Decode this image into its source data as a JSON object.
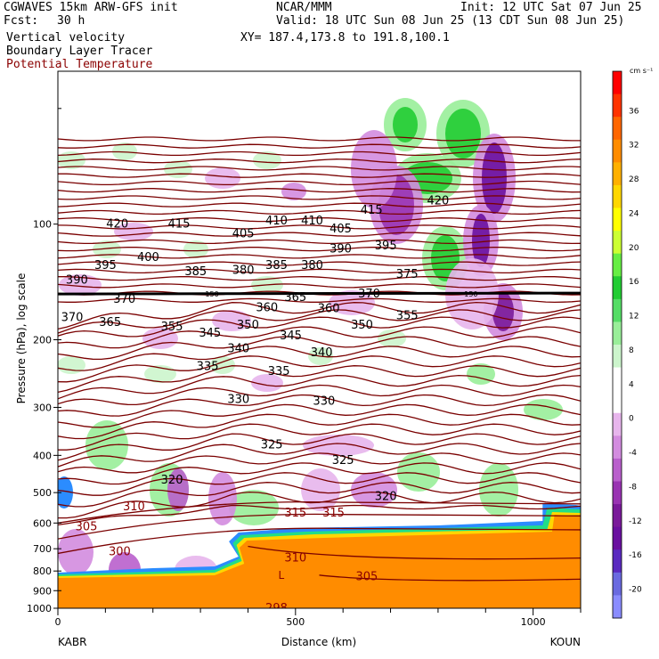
{
  "header": {
    "model": "CGWAVES 15km ARW-GFS init",
    "fcst_label": "Fcst:",
    "fcst_value": "30 h",
    "center": "NCAR/MMM",
    "init": "Init: 12 UTC Sat 07 Jun 25",
    "valid": "Valid: 18 UTC Sun 08 Jun 25 (13 CDT Sun 08 Jun 25)",
    "xy": "XY= 187.4,173.8 to 191.8,100.1",
    "fields": [
      "Vertical velocity",
      "Boundary Layer Tracer",
      "Potential Temperature"
    ]
  },
  "colors": {
    "theta_contour": "#7a0000",
    "theta_label": "#8b0000",
    "pbl_fill": "#ff8c00",
    "tropopause": "#000000"
  },
  "chart_data": {
    "type": "contour-cross-section",
    "xlabel": "Distance (km)",
    "ylabel": "Pressure (hPa), log scale",
    "xlim": [
      0,
      1100
    ],
    "x_ticks": [
      0,
      500,
      1000
    ],
    "ylim": [
      1000,
      40
    ],
    "y_scale": "log",
    "y_ticks": [
      100,
      200,
      300,
      400,
      500,
      600,
      700,
      800,
      900,
      1000
    ],
    "endpoints": [
      "KABR",
      "KOUN"
    ],
    "colorbar": {
      "unit": "cm s⁻¹",
      "ticks": [
        36,
        32,
        28,
        24,
        20,
        16,
        12,
        8,
        4,
        0,
        -4,
        -8,
        -12,
        -16,
        -20
      ],
      "colors": [
        "#ff0000",
        "#ff3300",
        "#ff6600",
        "#ff8c00",
        "#ffb000",
        "#ffd700",
        "#ffff00",
        "#ccff33",
        "#66ee44",
        "#22cc33",
        "#55dd66",
        "#99ee99",
        "#ccf5cc",
        "#ffffff",
        "#ffffff",
        "#e7b5ec",
        "#d38cdf",
        "#b95fcc",
        "#9933b2",
        "#7a1a9a",
        "#6a10a0",
        "#5a2ac0",
        "#6a6ae0",
        "#8a8cff"
      ]
    },
    "theta_labels": [
      {
        "v": "420",
        "x": 125,
        "p": 100
      },
      {
        "v": "415",
        "x": 255,
        "p": 100
      },
      {
        "v": "405",
        "x": 390,
        "p": 106
      },
      {
        "v": "410",
        "x": 460,
        "p": 98
      },
      {
        "v": "410",
        "x": 535,
        "p": 98
      },
      {
        "v": "405",
        "x": 595,
        "p": 103
      },
      {
        "v": "415",
        "x": 660,
        "p": 92
      },
      {
        "v": "420",
        "x": 800,
        "p": 87
      },
      {
        "v": "395",
        "x": 100,
        "p": 128
      },
      {
        "v": "400",
        "x": 190,
        "p": 122
      },
      {
        "v": "385",
        "x": 290,
        "p": 133
      },
      {
        "v": "380",
        "x": 390,
        "p": 132
      },
      {
        "v": "385",
        "x": 460,
        "p": 128
      },
      {
        "v": "380",
        "x": 535,
        "p": 128
      },
      {
        "v": "390",
        "x": 595,
        "p": 116
      },
      {
        "v": "395",
        "x": 690,
        "p": 114
      },
      {
        "v": "390",
        "x": 40,
        "p": 140
      },
      {
        "v": "375",
        "x": 735,
        "p": 135
      },
      {
        "v": "370",
        "x": 140,
        "p": 157
      },
      {
        "v": "360",
        "x": 440,
        "p": 165
      },
      {
        "v": "365",
        "x": 500,
        "p": 155
      },
      {
        "v": "360",
        "x": 570,
        "p": 166
      },
      {
        "v": "370",
        "x": 655,
        "p": 152
      },
      {
        "v": "370",
        "x": 30,
        "p": 175
      },
      {
        "v": "365",
        "x": 110,
        "p": 180
      },
      {
        "v": "355",
        "x": 240,
        "p": 185
      },
      {
        "v": "345",
        "x": 320,
        "p": 192
      },
      {
        "v": "350",
        "x": 400,
        "p": 183
      },
      {
        "v": "345",
        "x": 490,
        "p": 195
      },
      {
        "v": "350",
        "x": 640,
        "p": 183
      },
      {
        "v": "355",
        "x": 735,
        "p": 173
      },
      {
        "v": "340",
        "x": 380,
        "p": 211
      },
      {
        "v": "340",
        "x": 555,
        "p": 216
      },
      {
        "v": "335",
        "x": 315,
        "p": 235
      },
      {
        "v": "335",
        "x": 465,
        "p": 242
      },
      {
        "v": "330",
        "x": 380,
        "p": 286
      },
      {
        "v": "330",
        "x": 560,
        "p": 289
      },
      {
        "v": "325",
        "x": 450,
        "p": 375
      },
      {
        "v": "325",
        "x": 600,
        "p": 412
      },
      {
        "v": "320",
        "x": 240,
        "p": 464
      },
      {
        "v": "320",
        "x": 690,
        "p": 512
      },
      {
        "v": "310",
        "x": 160,
        "p": 544
      },
      {
        "v": "315",
        "x": 500,
        "p": 565
      },
      {
        "v": "315",
        "x": 580,
        "p": 565
      },
      {
        "v": "305",
        "x": 60,
        "p": 614
      },
      {
        "v": "310",
        "x": 500,
        "p": 740
      },
      {
        "v": "305",
        "x": 650,
        "p": 828
      },
      {
        "v": "300",
        "x": 130,
        "p": 713
      },
      {
        "v": "298",
        "x": 460,
        "p": 1000
      }
    ],
    "tropopause_labels": [
      "150",
      "150"
    ],
    "low_marker": "L"
  }
}
